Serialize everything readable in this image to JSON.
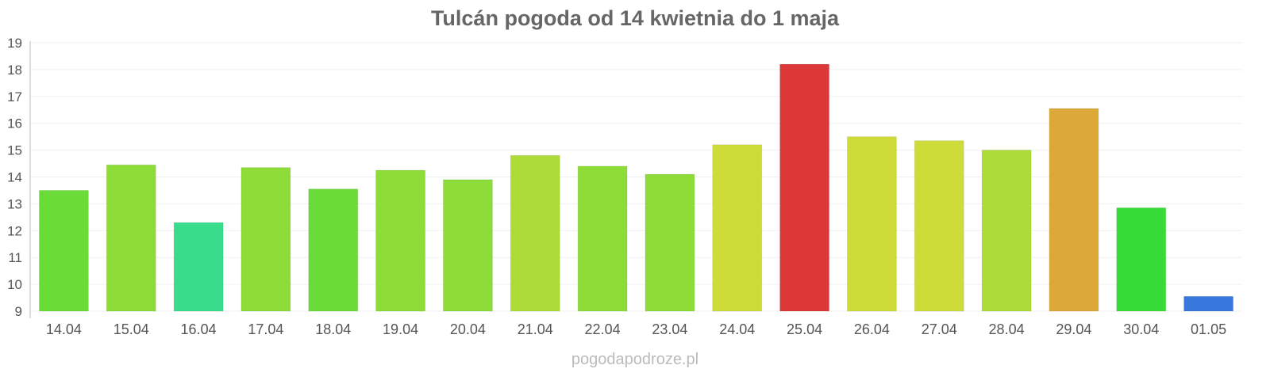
{
  "chart_data": {
    "type": "bar",
    "title": "Tulcán pogoda od 14 kwietnia do 1 maja",
    "xlabel": "",
    "ylabel": "",
    "ylim": [
      9,
      19
    ],
    "yticks": [
      "9",
      "10",
      "11",
      "12",
      "13",
      "14",
      "15",
      "16",
      "17",
      "18",
      "19"
    ],
    "grid": true,
    "categories": [
      "14.04",
      "15.04",
      "16.04",
      "17.04",
      "18.04",
      "19.04",
      "20.04",
      "21.04",
      "22.04",
      "23.04",
      "24.04",
      "25.04",
      "26.04",
      "27.04",
      "28.04",
      "29.04",
      "30.04",
      "01.05"
    ],
    "values": [
      13.5,
      14.45,
      12.3,
      14.35,
      13.55,
      14.25,
      13.9,
      14.8,
      14.4,
      14.1,
      15.2,
      18.2,
      15.5,
      15.35,
      15.0,
      16.55,
      12.85,
      9.55
    ],
    "colors": [
      "#6adc38",
      "#8ddc38",
      "#38dc8a",
      "#8ddc38",
      "#6adc38",
      "#8ddc38",
      "#8ddc38",
      "#addc38",
      "#8ddc38",
      "#8ddc38",
      "#cddc38",
      "#dc3838",
      "#cddc38",
      "#cddc38",
      "#addc38",
      "#dca838",
      "#38dc38",
      "#3878dc"
    ]
  },
  "footer": "pogodapodroze.pl"
}
